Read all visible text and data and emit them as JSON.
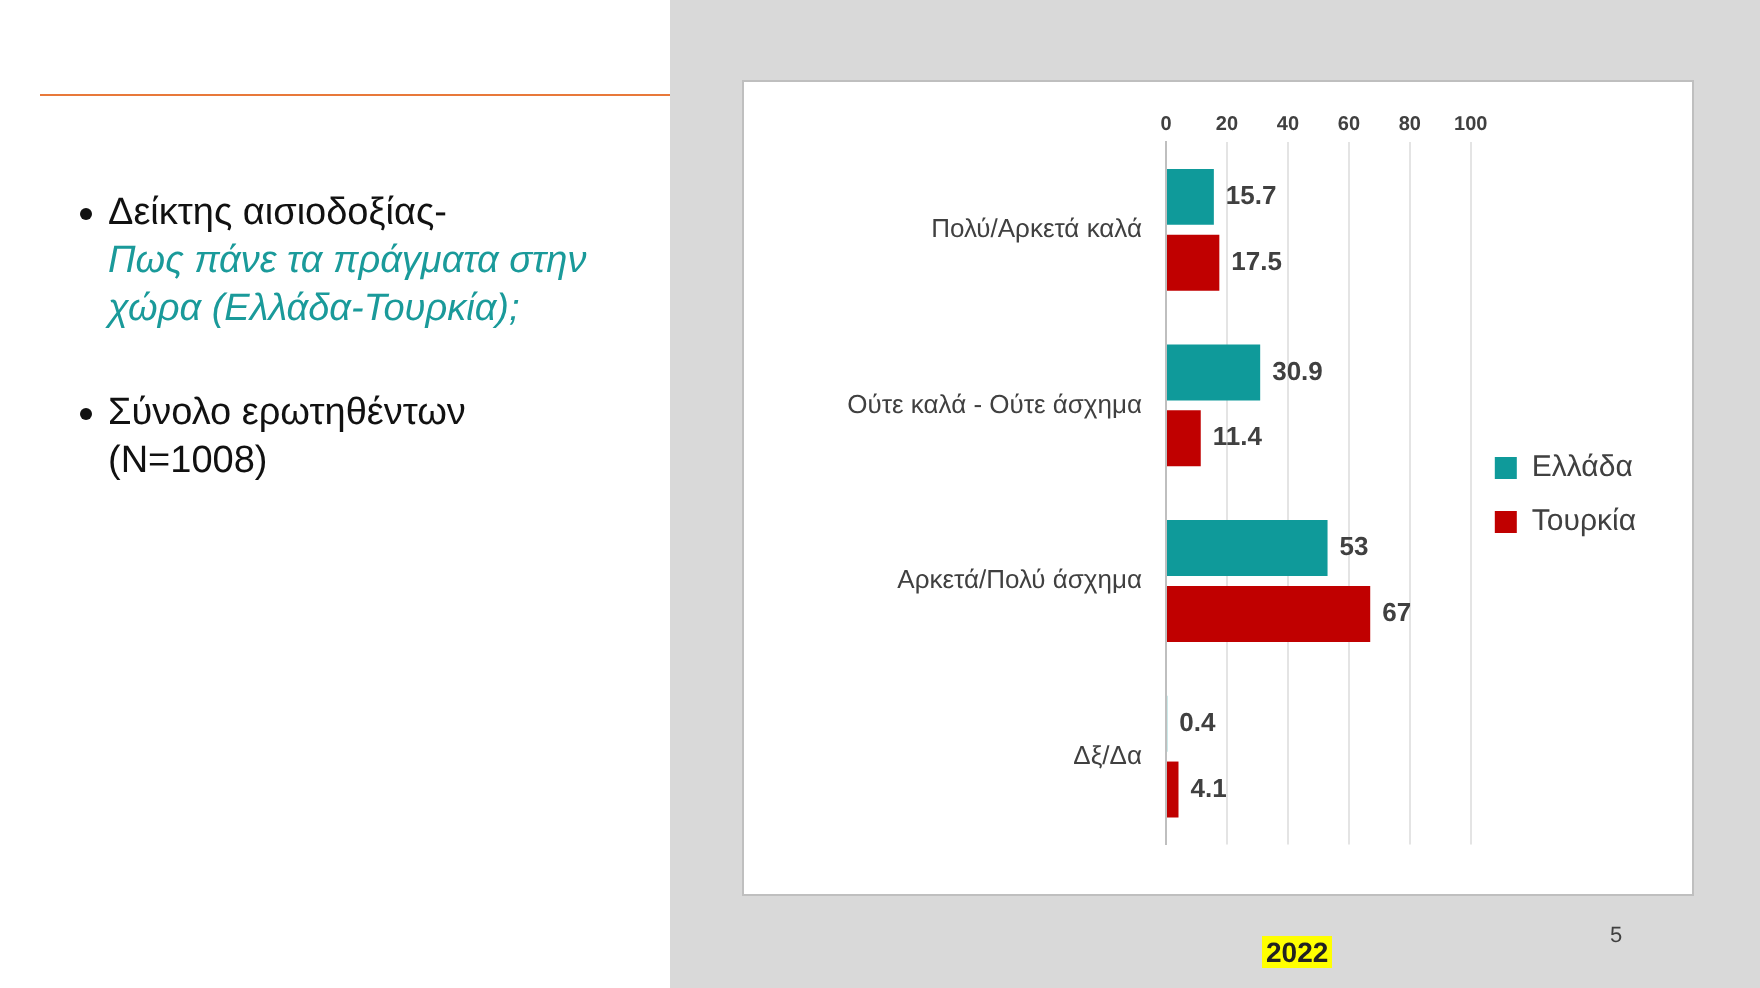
{
  "chart_data": {
    "type": "bar",
    "orientation": "horizontal",
    "title": "Δείκτης αισιοδοξίας-",
    "subtitle": "Πως πάνε τα πράγματα στην χώρα (Ελλάδα-Τουρκία);",
    "categories": [
      "Πολύ/Αρκετά καλά",
      "Ούτε καλά - Ούτε άσχημα",
      "Αρκετά/Πολύ άσχημα",
      "Δξ/Δα"
    ],
    "series": [
      {
        "name": "Ελλάδα",
        "color": "#0f9a9a",
        "values": [
          15.7,
          30.9,
          53,
          0.4
        ]
      },
      {
        "name": "Τουρκία",
        "color": "#c00000",
        "values": [
          17.5,
          11.4,
          67,
          4.1
        ]
      }
    ],
    "xlim": [
      0,
      100
    ],
    "xticks": [
      0,
      20,
      40,
      60,
      80,
      100
    ],
    "grid": "x",
    "legend": "right",
    "data_labels": true,
    "annotations": [
      "2022",
      "5",
      "Σύνολο ερωτηθέντων (N=1008)"
    ]
  }
}
